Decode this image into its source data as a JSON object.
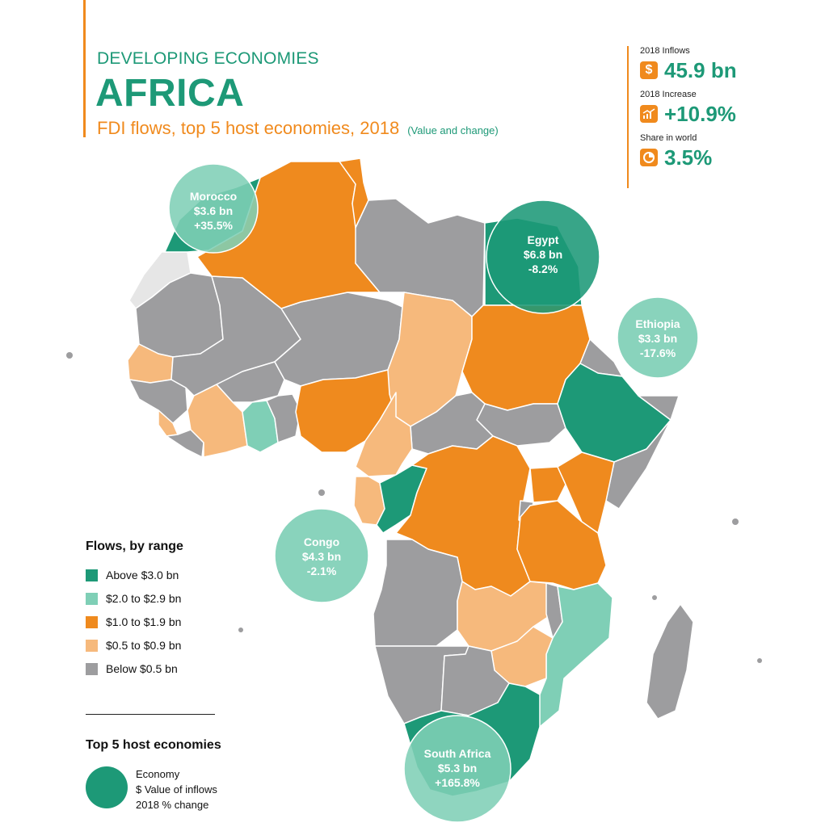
{
  "header": {
    "eyebrow": "DEVELOPING ECONOMIES",
    "title": "AFRICA",
    "subtitle": "FDI flows, top 5 host economies, 2018",
    "subtitle_note": "(Value and change)"
  },
  "stats": [
    {
      "label": "2018 Inflows",
      "value": "45.9 bn",
      "icon": "dollar-icon"
    },
    {
      "label": "2018 Increase",
      "value": "+10.9%",
      "icon": "growth-chart-icon"
    },
    {
      "label": "Share in world",
      "value": "3.5%",
      "icon": "pie-chart-icon"
    }
  ],
  "colors": {
    "above_3": "#1d9977",
    "range_2_29": "#7fcfb6",
    "range_1_19": "#ef8a1e",
    "range_05_09": "#f6b97c",
    "below_05": "#9d9d9f",
    "unclassified": "#e6e6e6",
    "accent": "#f08a1d"
  },
  "bubbles": {
    "morocco": {
      "name": "Morocco",
      "value": "$3.6 bn",
      "change": "+35.5%"
    },
    "egypt": {
      "name": "Egypt",
      "value": "$6.8 bn",
      "change": "-8.2%"
    },
    "ethiopia": {
      "name": "Ethiopia",
      "value": "$3.3 bn",
      "change": "-17.6%"
    },
    "congo": {
      "name": "Congo",
      "value": "$4.3 bn",
      "change": "-2.1%"
    },
    "south_africa": {
      "name": "South Africa",
      "value": "$5.3 bn",
      "change": "+165.8%"
    }
  },
  "legend": {
    "title": "Flows, by range",
    "items": [
      {
        "label": "Above $3.0 bn",
        "color": "#1d9977"
      },
      {
        "label": "$2.0 to $2.9 bn",
        "color": "#7fcfb6"
      },
      {
        "label": "$1.0 to $1.9 bn",
        "color": "#ef8a1e"
      },
      {
        "label": "$0.5 to $0.9 bn",
        "color": "#f6b97c"
      },
      {
        "label": "Below $0.5 bn",
        "color": "#9d9d9f"
      }
    ]
  },
  "top5_key": {
    "title": "Top 5 host economies",
    "line1": "Economy",
    "line2": "$ Value of inflows",
    "line3": "2018 % change"
  }
}
